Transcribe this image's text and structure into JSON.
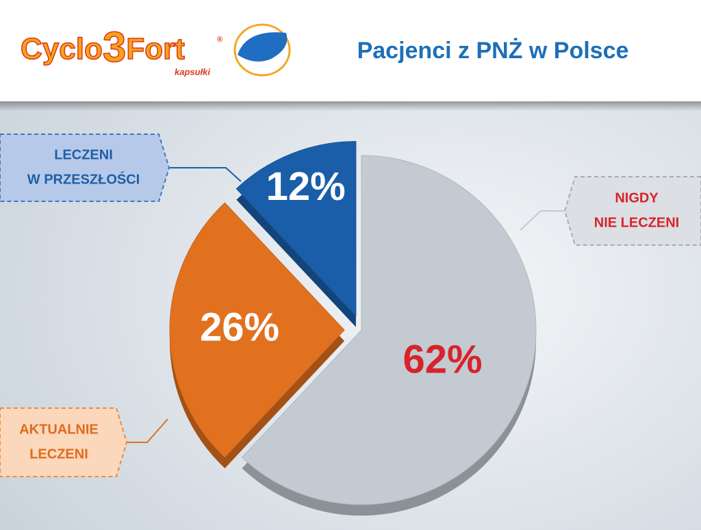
{
  "header": {
    "logo": {
      "parts": [
        "Cyclo",
        "3",
        "Fort"
      ],
      "mark": "®",
      "tagline": "kapsułki"
    }
  },
  "chart_data": {
    "type": "pie",
    "title": "Pacjenci z PNŻ w Polsce",
    "categories": [
      [
        "NIGDY",
        "NIE LECZENI"
      ],
      [
        "AKTUALNIE",
        "LECZENI"
      ],
      [
        "LECZENI",
        "W PRZESZŁOŚCI"
      ]
    ],
    "values": [
      62,
      26,
      12
    ],
    "value_labels": [
      "62%",
      "26%",
      "12%"
    ],
    "colors": [
      "#c3cad2",
      "#e2711f",
      "#1a5ea9"
    ],
    "label_colors": [
      "#d8232a",
      "#e06a1e",
      "#1d5fa8"
    ]
  }
}
